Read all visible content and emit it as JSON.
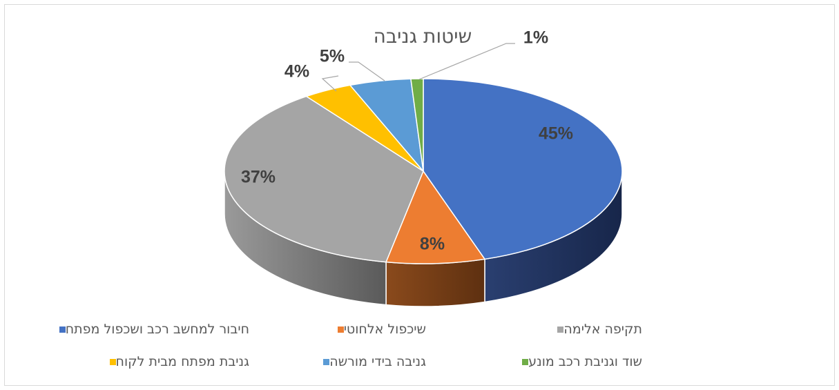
{
  "chart_data": {
    "type": "pie",
    "title": "שיטות גניבה",
    "categories": [
      "חיבור למחשב רכב ושכפול מפתח",
      "שיכפול אלחוטי",
      "תקיפה אלימה",
      "גניבת מפתח מבית לקוח",
      "גניבה בידי מורשה",
      "שוד וגניבת רכב מונע"
    ],
    "values": [
      45,
      8,
      37,
      4,
      5,
      1
    ],
    "data_labels": [
      "45%",
      "8%",
      "37%",
      "4%",
      "5%",
      "1%"
    ],
    "colors": [
      "#4472C4",
      "#ED7D31",
      "#A5A5A5",
      "#FFC000",
      "#5B9BD5",
      "#70AD47"
    ],
    "legend_position": "bottom",
    "style": "3d"
  }
}
